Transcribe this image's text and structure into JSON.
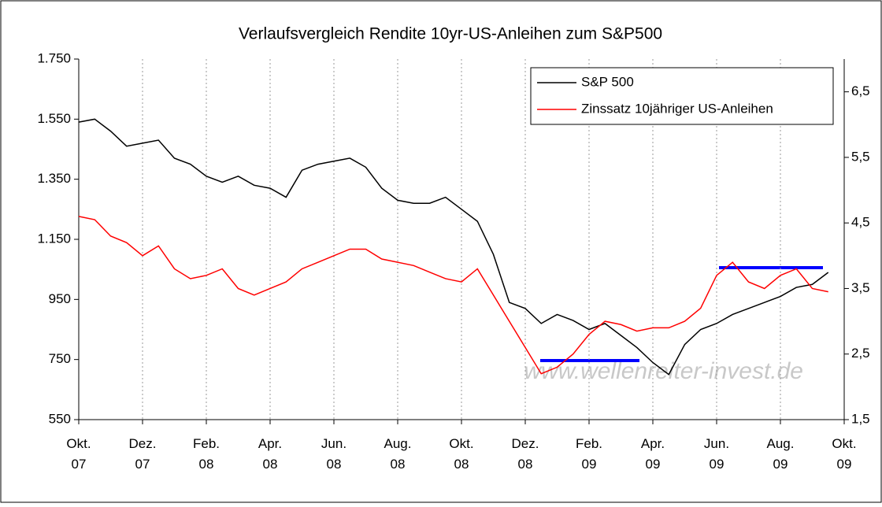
{
  "chart_data": {
    "type": "line",
    "title": "Verlaufsvergleich Rendite 10yr-US-Anleihen zum S&P500",
    "watermark": "www.wellenreiter-invest.de",
    "x": [
      0,
      0.5,
      1,
      1.5,
      2,
      2.5,
      3,
      3.5,
      4,
      4.5,
      5,
      5.5,
      6,
      6.5,
      7,
      7.5,
      8,
      8.5,
      9,
      9.5,
      10,
      10.5,
      11,
      11.5,
      12,
      12.5,
      13,
      13.5,
      14,
      14.5,
      15,
      15.5,
      16,
      16.5,
      17,
      17.5,
      18,
      18.5,
      19,
      19.5,
      20,
      20.5,
      21,
      21.5,
      22,
      22.5,
      23,
      23.5
    ],
    "xlim": [
      0,
      24
    ],
    "xticks": [
      {
        "value": 0,
        "label": "Okt. 07"
      },
      {
        "value": 2,
        "label": "Dez. 07"
      },
      {
        "value": 4,
        "label": "Feb. 08"
      },
      {
        "value": 6,
        "label": "Apr. 08"
      },
      {
        "value": 8,
        "label": "Jun. 08"
      },
      {
        "value": 10,
        "label": "Aug. 08"
      },
      {
        "value": 12,
        "label": "Okt. 08"
      },
      {
        "value": 14,
        "label": "Dez. 08"
      },
      {
        "value": 16,
        "label": "Feb. 09"
      },
      {
        "value": 18,
        "label": "Apr. 09"
      },
      {
        "value": 20,
        "label": "Jun. 09"
      },
      {
        "value": 22,
        "label": "Aug. 09"
      },
      {
        "value": 24,
        "label": "Okt. 09"
      }
    ],
    "ylim": [
      550,
      1750
    ],
    "yticks": [
      {
        "value": 550,
        "label": "550"
      },
      {
        "value": 750,
        "label": "750"
      },
      {
        "value": 950,
        "label": "950"
      },
      {
        "value": 1150,
        "label": "1.150"
      },
      {
        "value": 1350,
        "label": "1.350"
      },
      {
        "value": 1550,
        "label": "1.550"
      },
      {
        "value": 1750,
        "label": "1.750"
      }
    ],
    "y2lim": [
      1.5,
      7.0
    ],
    "y2ticks": [
      {
        "value": 1.5,
        "label": "1,5"
      },
      {
        "value": 2.5,
        "label": "2,5"
      },
      {
        "value": 3.5,
        "label": "3,5"
      },
      {
        "value": 4.5,
        "label": "4,5"
      },
      {
        "value": 5.5,
        "label": "5,5"
      },
      {
        "value": 6.5,
        "label": "6,5"
      }
    ],
    "grid": true,
    "legend": "top-right",
    "series": [
      {
        "name": "S&P 500",
        "color": "#000000",
        "values": [
          1540,
          1550,
          1510,
          1460,
          1470,
          1480,
          1420,
          1400,
          1360,
          1340,
          1360,
          1330,
          1320,
          1290,
          1380,
          1400,
          1410,
          1420,
          1390,
          1320,
          1280,
          1270,
          1270,
          1290,
          1250,
          1210,
          1100,
          940,
          920,
          870,
          900,
          880,
          850,
          870,
          830,
          790,
          740,
          700,
          800,
          850,
          870,
          900,
          920,
          940,
          960,
          990,
          1000,
          1040
        ]
      },
      {
        "name": "Zinssatz 10jähriger US-Anleihen",
        "color": "#ff0000",
        "axis": "y2",
        "values": [
          4.6,
          4.55,
          4.3,
          4.2,
          4.0,
          4.15,
          3.8,
          3.65,
          3.7,
          3.8,
          3.5,
          3.4,
          3.5,
          3.6,
          3.8,
          3.9,
          4.0,
          4.1,
          4.1,
          3.95,
          3.9,
          3.85,
          3.75,
          3.65,
          3.6,
          3.8,
          3.4,
          3.0,
          2.6,
          2.2,
          2.3,
          2.5,
          2.8,
          3.0,
          2.95,
          2.85,
          2.9,
          2.9,
          3.0,
          3.2,
          3.7,
          3.9,
          3.6,
          3.5,
          3.7,
          3.8,
          3.5,
          3.45
        ]
      }
    ]
  }
}
